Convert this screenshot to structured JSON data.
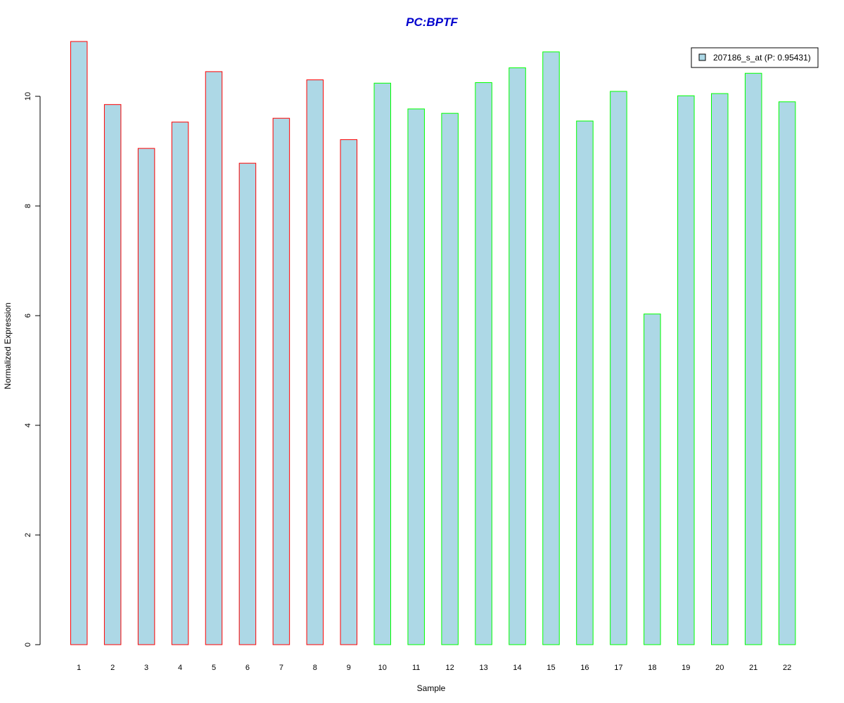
{
  "chart_data": {
    "type": "bar",
    "title": "PC:BPTF",
    "xlabel": "Sample",
    "ylabel": "Normalized Expression",
    "categories": [
      "1",
      "2",
      "3",
      "4",
      "5",
      "6",
      "7",
      "8",
      "9",
      "10",
      "11",
      "12",
      "13",
      "14",
      "15",
      "16",
      "17",
      "18",
      "19",
      "20",
      "21",
      "22"
    ],
    "values": [
      11.0,
      9.85,
      9.05,
      9.53,
      10.45,
      8.78,
      9.6,
      10.3,
      9.21,
      10.24,
      9.77,
      9.69,
      10.25,
      10.52,
      10.81,
      9.55,
      10.09,
      6.03,
      10.01,
      10.05,
      10.42,
      9.9
    ],
    "groups": [
      "red",
      "red",
      "red",
      "red",
      "red",
      "red",
      "red",
      "red",
      "red",
      "green",
      "green",
      "green",
      "green",
      "green",
      "green",
      "green",
      "green",
      "green",
      "green",
      "green",
      "green",
      "green"
    ],
    "ylim": [
      0,
      11
    ],
    "yticks": [
      0,
      2,
      4,
      6,
      8,
      10
    ],
    "grid": false,
    "legend": {
      "placement": "top-right",
      "label": "207186_s_at (P: 0.95431)"
    },
    "colors": {
      "bar_fill": "#add8e6",
      "red_border": "#ff0000",
      "green_border": "#00ff00",
      "title": "#0000cd",
      "axis": "#000000"
    }
  }
}
